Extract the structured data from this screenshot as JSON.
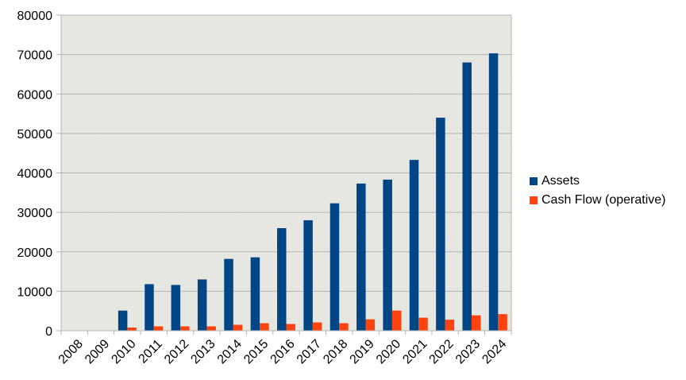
{
  "chart_data": {
    "type": "bar",
    "title": "",
    "xlabel": "",
    "ylabel": "",
    "categories": [
      "2008",
      "2009",
      "2010",
      "2011",
      "2012",
      "2013",
      "2014",
      "2015",
      "2016",
      "2017",
      "2018",
      "2019",
      "2020",
      "2021",
      "2022",
      "2023",
      "2024"
    ],
    "series": [
      {
        "name": "Assets",
        "color": "#004586",
        "values": [
          0,
          0,
          5100,
          11800,
          11600,
          13000,
          18200,
          18600,
          26000,
          28000,
          32300,
          37300,
          38300,
          43300,
          54000,
          68000,
          70300
        ]
      },
      {
        "name": "Cash Flow (operative)",
        "color": "#FF420E",
        "values": [
          0,
          0,
          800,
          1100,
          1100,
          1100,
          1500,
          1900,
          1700,
          2100,
          1900,
          2900,
          5100,
          3300,
          2800,
          3900,
          4200
        ]
      }
    ],
    "ylim": [
      0,
      80000
    ],
    "yticks": [
      0,
      10000,
      20000,
      30000,
      40000,
      50000,
      60000,
      70000,
      80000
    ],
    "grid": true,
    "legend_position": "right"
  },
  "colors": {
    "plot_background": "#E6E6E1",
    "grid": "#B3B3B3",
    "axis": "#B3B3B3"
  }
}
